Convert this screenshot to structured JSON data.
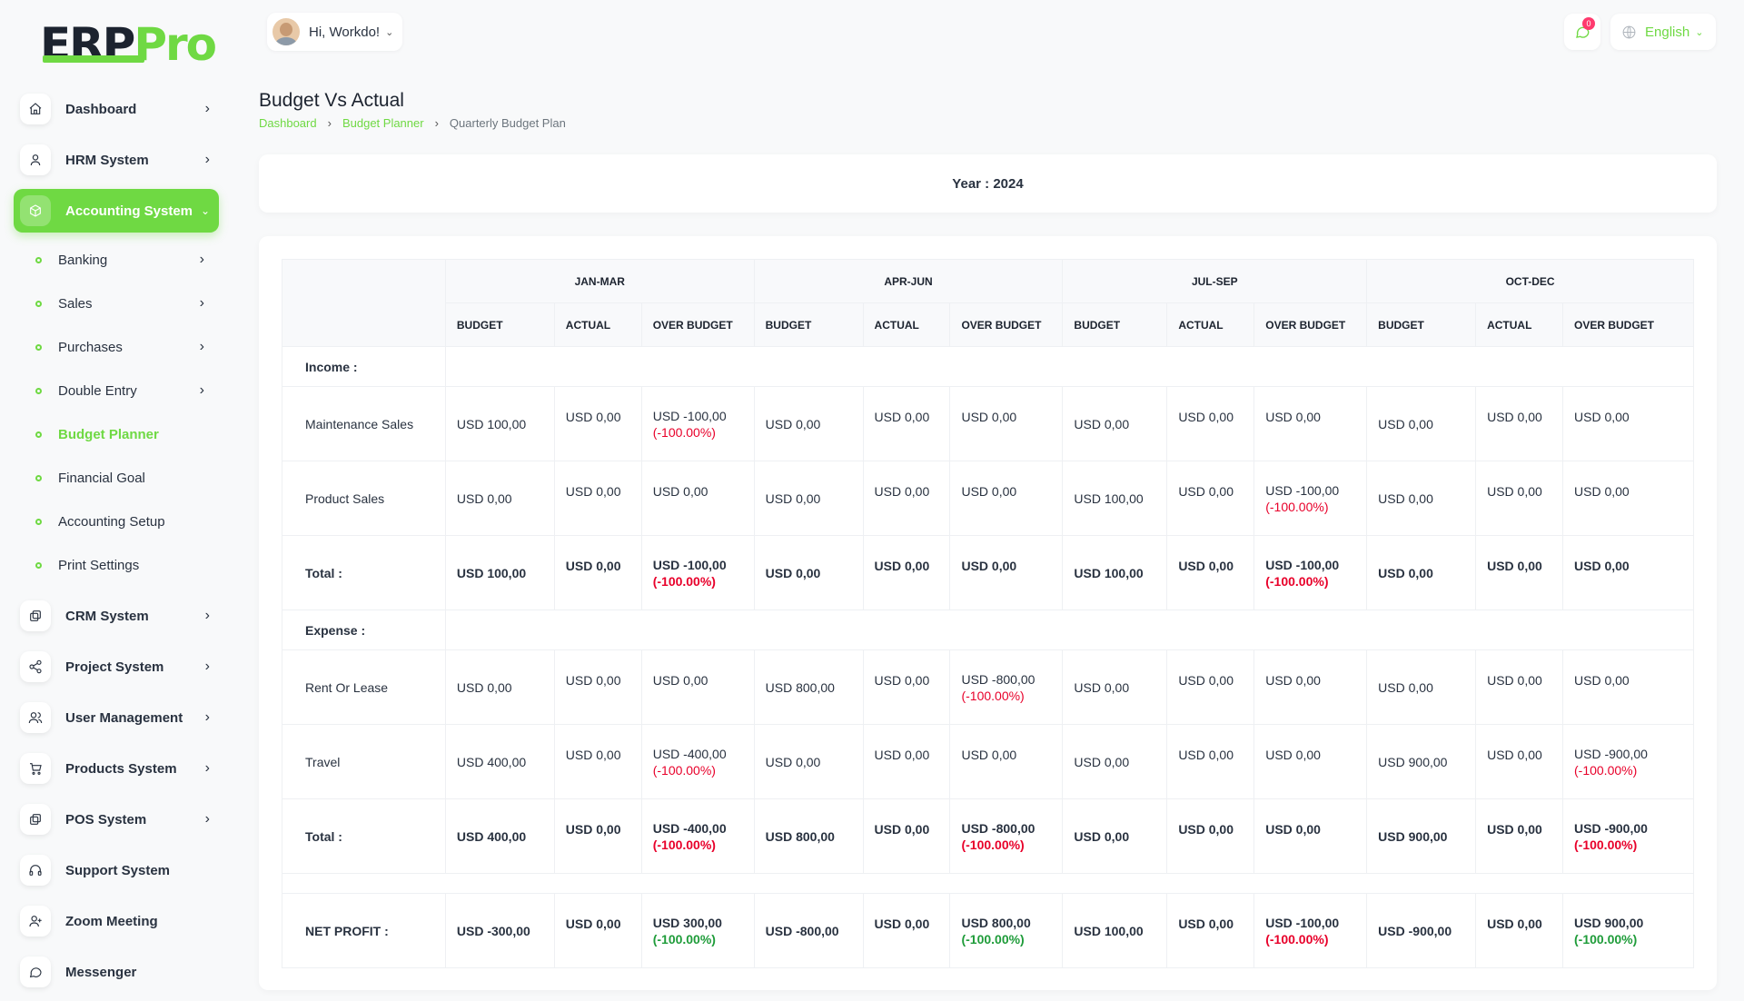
{
  "brand": {
    "part1": "ERP",
    "part2": "Pro"
  },
  "sidebar": {
    "items": [
      {
        "label": "Dashboard",
        "icon": "home-icon"
      },
      {
        "label": "HRM System",
        "icon": "user-icon"
      },
      {
        "label": "Accounting System",
        "icon": "box-icon",
        "active": true
      }
    ],
    "accounting_sub": [
      {
        "label": "Banking"
      },
      {
        "label": "Sales"
      },
      {
        "label": "Purchases"
      },
      {
        "label": "Double Entry"
      },
      {
        "label": "Budget Planner"
      },
      {
        "label": "Financial Goal"
      },
      {
        "label": "Accounting Setup"
      },
      {
        "label": "Print Settings"
      }
    ],
    "items_after": [
      {
        "label": "CRM System",
        "icon": "layers-icon"
      },
      {
        "label": "Project System",
        "icon": "share-icon"
      },
      {
        "label": "User Management",
        "icon": "users-icon"
      },
      {
        "label": "Products System",
        "icon": "cart-icon"
      },
      {
        "label": "POS System",
        "icon": "layers-icon"
      },
      {
        "label": "Support System",
        "icon": "headphones-icon"
      },
      {
        "label": "Zoom Meeting",
        "icon": "user-plus-icon"
      },
      {
        "label": "Messenger",
        "icon": "message-icon"
      }
    ]
  },
  "header": {
    "greeting": "Hi, Workdo!",
    "notification_count": "0",
    "language": "English"
  },
  "page": {
    "title": "Budget Vs Actual",
    "breadcrumb": [
      "Dashboard",
      "Budget Planner",
      "Quarterly Budget Plan"
    ],
    "year_label": "Year : 2024"
  },
  "table": {
    "quarters": [
      "JAN-MAR",
      "APR-JUN",
      "JUL-SEP",
      "OCT-DEC"
    ],
    "sub_headers": [
      "BUDGET",
      "ACTUAL",
      "OVER BUDGET"
    ],
    "income_label": "Income :",
    "expense_label": "Expense :",
    "total_label": "Total :",
    "net_label": "NET PROFIT :",
    "income_rows": [
      {
        "name": "Maintenance Sales",
        "cells": [
          "USD 100,00",
          "USD 0,00",
          "USD -100,00",
          "(-100.00%)",
          "USD 0,00",
          "USD 0,00",
          "USD 0,00",
          "",
          "USD 0,00",
          "USD 0,00",
          "USD 0,00",
          "",
          "USD 0,00",
          "USD 0,00",
          "USD 0,00",
          ""
        ]
      },
      {
        "name": "Product Sales",
        "cells": [
          "USD 0,00",
          "USD 0,00",
          "USD 0,00",
          "",
          "USD 0,00",
          "USD 0,00",
          "USD 0,00",
          "",
          "USD 100,00",
          "USD 0,00",
          "USD -100,00",
          "(-100.00%)",
          "USD 0,00",
          "USD 0,00",
          "USD 0,00",
          ""
        ]
      }
    ],
    "income_total": [
      "USD 100,00",
      "USD 0,00",
      "USD -100,00",
      "(-100.00%)",
      "USD 0,00",
      "USD 0,00",
      "USD 0,00",
      "",
      "USD 100,00",
      "USD 0,00",
      "USD -100,00",
      "(-100.00%)",
      "USD 0,00",
      "USD 0,00",
      "USD 0,00",
      ""
    ],
    "expense_rows": [
      {
        "name": "Rent Or Lease",
        "cells": [
          "USD 0,00",
          "USD 0,00",
          "USD 0,00",
          "",
          "USD 800,00",
          "USD 0,00",
          "USD -800,00",
          "(-100.00%)",
          "USD 0,00",
          "USD 0,00",
          "USD 0,00",
          "",
          "USD 0,00",
          "USD 0,00",
          "USD 0,00",
          ""
        ]
      },
      {
        "name": "Travel",
        "cells": [
          "USD 400,00",
          "USD 0,00",
          "USD -400,00",
          "(-100.00%)",
          "USD 0,00",
          "USD 0,00",
          "USD 0,00",
          "",
          "USD 0,00",
          "USD 0,00",
          "USD 0,00",
          "",
          "USD 900,00",
          "USD 0,00",
          "USD -900,00",
          "(-100.00%)"
        ]
      }
    ],
    "expense_total": [
      "USD 400,00",
      "USD 0,00",
      "USD -400,00",
      "(-100.00%)",
      "USD 800,00",
      "USD 0,00",
      "USD -800,00",
      "(-100.00%)",
      "USD 0,00",
      "USD 0,00",
      "USD 0,00",
      "",
      "USD 900,00",
      "USD 0,00",
      "USD -900,00",
      "(-100.00%)"
    ],
    "net_profit": [
      "USD -300,00",
      "USD 0,00",
      "USD 300,00",
      "(-100.00%)",
      "USD -800,00",
      "USD 0,00",
      "USD 800,00",
      "(-100.00%)",
      "USD 100,00",
      "USD 0,00",
      "USD -100,00",
      "(-100.00%)",
      "USD -900,00",
      "USD 0,00",
      "USD 900,00",
      "(-100.00%)"
    ],
    "net_pct_colors": [
      "pos",
      "pos",
      "neg",
      "pos"
    ]
  },
  "colors": {
    "accent": "#6fd943",
    "negative": "#e8002a",
    "positive": "#1f9c3a",
    "badge": "#ff3a6e"
  }
}
